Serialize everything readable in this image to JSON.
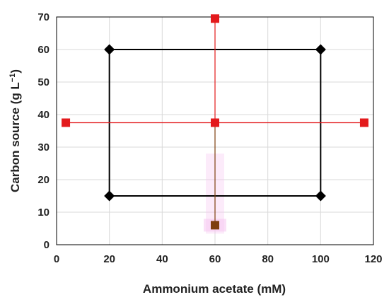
{
  "chart_data": {
    "type": "scatter",
    "xlabel": "Ammonium acetate (mM)",
    "ylabel": "Carbon source (g L",
    "ylabel_sup": "−1",
    "ylabel_close": ")",
    "xlim": [
      0,
      120
    ],
    "ylim": [
      0,
      70
    ],
    "x_ticks": [
      0,
      20,
      40,
      60,
      80,
      100,
      120
    ],
    "y_ticks": [
      0,
      10,
      20,
      30,
      40,
      50,
      60,
      70
    ],
    "grid": true,
    "colors": {
      "factorial": "#000000",
      "axial": "#e31a1c",
      "low_point": "#7f3f10",
      "glow": "#f5c6f0",
      "axes": "#000000",
      "grid": "#d9d9d9"
    },
    "series": [
      {
        "marker": "diamond",
        "color": "#000000",
        "connected": "rectangle",
        "points": [
          [
            20,
            60
          ],
          [
            100,
            60
          ],
          [
            100,
            15
          ],
          [
            20,
            15
          ]
        ]
      },
      {
        "marker": "square",
        "color": "#e31a1c",
        "connected": "cross",
        "points": [
          [
            3.5,
            37.5
          ],
          [
            60,
            37.5
          ],
          [
            116.5,
            37.5
          ],
          [
            60,
            69.5
          ]
        ]
      },
      {
        "marker": "square",
        "color": "#7f3f10",
        "points": [
          [
            60,
            6
          ]
        ]
      }
    ]
  }
}
